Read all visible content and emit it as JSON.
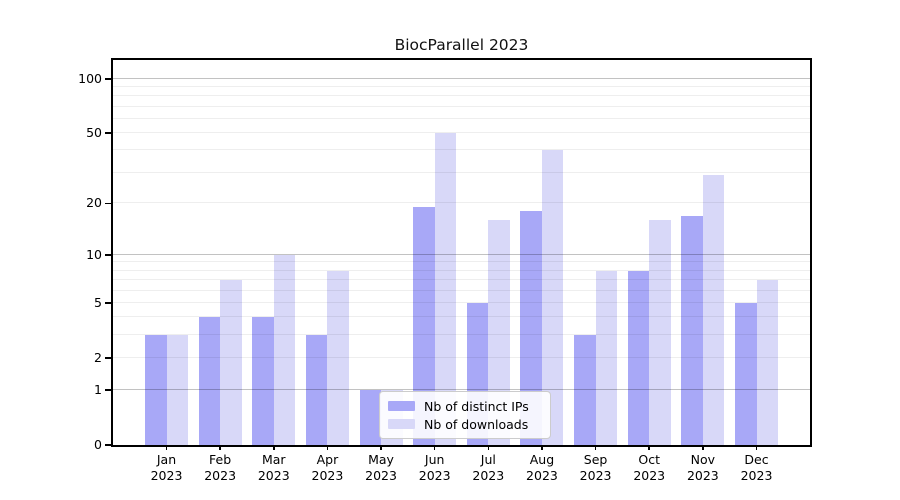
{
  "title": "BiocParallel 2023",
  "chart_data": {
    "type": "bar",
    "title": "BiocParallel 2023",
    "categories": [
      "Jan",
      "Feb",
      "Mar",
      "Apr",
      "May",
      "Jun",
      "Jul",
      "Aug",
      "Sep",
      "Oct",
      "Nov",
      "Dec"
    ],
    "x_year": "2023",
    "series": [
      {
        "name": "Nb of distinct IPs",
        "color": "#a8a8f7",
        "values": [
          3,
          4,
          4,
          3,
          1,
          19,
          5,
          18,
          3,
          8,
          17,
          5
        ]
      },
      {
        "name": "Nb of downloads",
        "color": "#d8d8f8",
        "values": [
          3,
          7,
          10,
          8,
          1,
          50,
          16,
          40,
          8,
          16,
          29,
          7
        ]
      }
    ],
    "y_scale": "log1p",
    "y_ticks": [
      0,
      1,
      2,
      5,
      10,
      20,
      50,
      100
    ],
    "grid_major": [
      1,
      10,
      100
    ],
    "grid_minor": [
      2,
      3,
      4,
      5,
      6,
      7,
      8,
      9,
      20,
      30,
      40,
      50,
      60,
      70,
      80,
      90
    ],
    "ylim": [
      0,
      127
    ],
    "xlabel": "",
    "ylabel": "",
    "grid": true,
    "legend_position": "lower center"
  }
}
